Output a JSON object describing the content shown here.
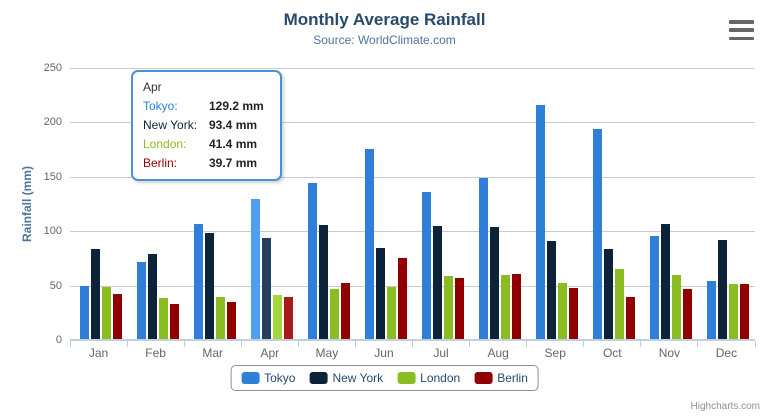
{
  "chart_data": {
    "type": "bar",
    "title": "Monthly Average Rainfall",
    "subtitle": "Source: WorldClimate.com",
    "xlabel": "",
    "ylabel": "Rainfall (mm)",
    "ylim": [
      0,
      250
    ],
    "yticks": [
      0,
      50,
      100,
      150,
      200,
      250
    ],
    "grid": true,
    "legend_position": "bottom",
    "categories": [
      "Jan",
      "Feb",
      "Mar",
      "Apr",
      "May",
      "Jun",
      "Jul",
      "Aug",
      "Sep",
      "Oct",
      "Nov",
      "Dec"
    ],
    "series": [
      {
        "name": "Tokyo",
        "color": "#2f7ed8",
        "hover_color": "#4f9ef0",
        "values": [
          49.9,
          71.5,
          106.4,
          129.2,
          144.0,
          176.0,
          135.6,
          148.5,
          216.4,
          194.1,
          95.6,
          54.4
        ]
      },
      {
        "name": "New York",
        "color": "#0d233a",
        "hover_color": "#24405c",
        "values": [
          83.6,
          78.8,
          98.5,
          93.4,
          106.0,
          84.5,
          105.0,
          104.3,
          91.2,
          83.5,
          106.6,
          92.3
        ]
      },
      {
        "name": "London",
        "color": "#8bbc21",
        "hover_color": "#a5d63b",
        "values": [
          48.9,
          38.8,
          39.3,
          41.4,
          47.0,
          48.3,
          59.0,
          59.6,
          52.4,
          65.2,
          59.3,
          51.2
        ]
      },
      {
        "name": "Berlin",
        "color": "#910000",
        "hover_color": "#ab1a1a",
        "values": [
          42.4,
          33.2,
          34.5,
          39.7,
          52.6,
          75.5,
          57.4,
          60.4,
          47.6,
          39.1,
          46.8,
          51.1
        ]
      }
    ],
    "hovered_category": "Apr"
  },
  "tooltip": {
    "border_color": "#4a90d9",
    "header": "Apr",
    "rows": [
      {
        "label": "Tokyo:",
        "value": "129.2 mm",
        "color": "#2f7ed8"
      },
      {
        "label": "New York:",
        "value": "93.4 mm",
        "color": "#0d233a"
      },
      {
        "label": "London:",
        "value": "41.4 mm",
        "color": "#8bbc21"
      },
      {
        "label": "Berlin:",
        "value": "39.7 mm",
        "color": "#910000"
      }
    ]
  },
  "menu": {
    "icon": "hamburger-icon"
  },
  "credits": {
    "label": "Highcharts.com"
  }
}
